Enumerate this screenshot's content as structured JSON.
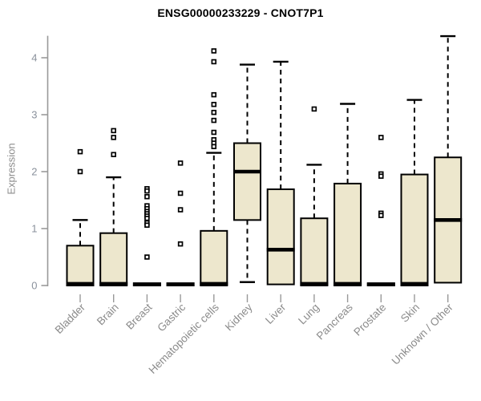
{
  "title": "ENSG00000233229 - CNOT7P1",
  "y_axis": {
    "label": "Expression"
  },
  "style": {
    "box_fill": "#EDE7CD",
    "box_stroke": "#000000",
    "median_color": "#000000",
    "whisker_color": "#000000",
    "outlier_stroke": "#000000",
    "outlier_fill": "#ffffff",
    "axis_line_color": "#999999",
    "tick_label_color": "#8A919C",
    "category_label_color": "#8B8B8B",
    "title_color": "#000000",
    "background": "#ffffff"
  },
  "chart_data": {
    "type": "boxplot",
    "title": "ENSG00000233229 - CNOT7P1",
    "xlabel": "",
    "ylabel": "Expression",
    "ylim": [
      0,
      4.4
    ],
    "yticks": [
      0,
      1,
      2,
      3,
      4
    ],
    "grid": false,
    "legend": "none",
    "categories": [
      "Bladder",
      "Brain",
      "Breast",
      "Gastric",
      "Hematopoietic cells",
      "Kidney",
      "Liver",
      "Lung",
      "Pancreas",
      "Prostate",
      "Skin",
      "Unknown / Other"
    ],
    "series": [
      {
        "name": "Bladder",
        "q1": 0,
        "median": 0.03,
        "q3": 0.7,
        "whisker_low": 0,
        "whisker_high": 1.15,
        "outliers": [
          2.35,
          2.0
        ]
      },
      {
        "name": "Brain",
        "q1": 0,
        "median": 0.03,
        "q3": 0.92,
        "whisker_low": 0,
        "whisker_high": 1.9,
        "outliers": [
          2.72,
          2.6,
          2.3
        ]
      },
      {
        "name": "Breast",
        "q1": 0,
        "median": 0.02,
        "q3": 0.04,
        "whisker_low": 0,
        "whisker_high": 0.04,
        "outliers": [
          1.7,
          1.66,
          1.56,
          1.4,
          1.35,
          1.3,
          1.26,
          1.22,
          1.18,
          1.1,
          1.06,
          0.5
        ]
      },
      {
        "name": "Gastric",
        "q1": 0,
        "median": 0.02,
        "q3": 0.04,
        "whisker_low": 0,
        "whisker_high": 0.04,
        "outliers": [
          2.15,
          1.62,
          1.33,
          0.73
        ]
      },
      {
        "name": "Hematopoietic cells",
        "q1": 0,
        "median": 0.03,
        "q3": 0.96,
        "whisker_low": 0,
        "whisker_high": 2.33,
        "outliers": [
          4.12,
          3.93,
          3.35,
          3.18,
          3.04,
          2.9,
          2.69,
          2.56,
          2.5,
          2.44
        ]
      },
      {
        "name": "Kidney",
        "q1": 1.15,
        "median": 2.0,
        "q3": 2.5,
        "whisker_low": 0.06,
        "whisker_high": 3.88,
        "outliers": []
      },
      {
        "name": "Liver",
        "q1": 0.02,
        "median": 0.63,
        "q3": 1.69,
        "whisker_low": 0.02,
        "whisker_high": 3.93,
        "outliers": []
      },
      {
        "name": "Lung",
        "q1": 0,
        "median": 0.03,
        "q3": 1.18,
        "whisker_low": 0,
        "whisker_high": 2.12,
        "outliers": [
          3.1
        ]
      },
      {
        "name": "Pancreas",
        "q1": 0,
        "median": 0.03,
        "q3": 1.79,
        "whisker_low": 0,
        "whisker_high": 3.19,
        "outliers": []
      },
      {
        "name": "Prostate",
        "q1": 0,
        "median": 0.02,
        "q3": 0.04,
        "whisker_low": 0,
        "whisker_high": 0.04,
        "outliers": [
          2.6,
          1.96,
          1.92,
          1.27,
          1.23
        ]
      },
      {
        "name": "Skin",
        "q1": 0,
        "median": 0.03,
        "q3": 1.95,
        "whisker_low": 0,
        "whisker_high": 3.26,
        "outliers": []
      },
      {
        "name": "Unknown / Other",
        "q1": 0.05,
        "median": 1.15,
        "q3": 2.25,
        "whisker_low": 0.05,
        "whisker_high": 4.38,
        "outliers": []
      }
    ]
  }
}
